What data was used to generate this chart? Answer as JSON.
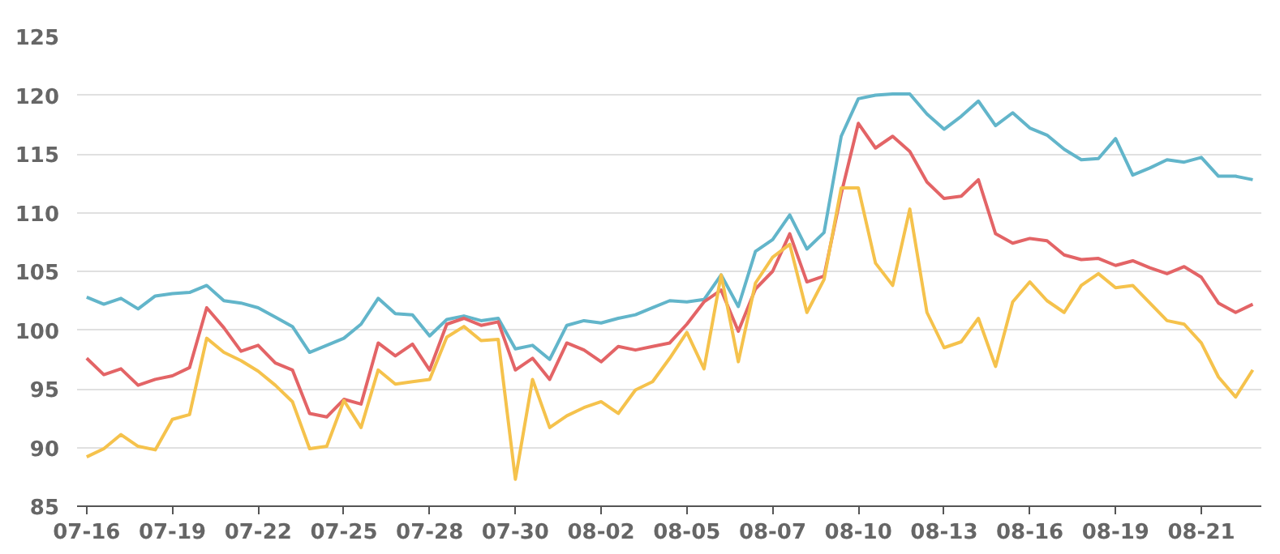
{
  "chart_data": {
    "type": "line",
    "ylim": [
      85,
      125
    ],
    "categories": [
      "07-16",
      null,
      null,
      null,
      null,
      "07-19",
      null,
      null,
      null,
      null,
      "07-22",
      null,
      null,
      null,
      null,
      "07-25",
      null,
      null,
      null,
      null,
      "07-28",
      null,
      null,
      null,
      null,
      "07-30",
      null,
      null,
      null,
      null,
      "08-02",
      null,
      null,
      null,
      null,
      "08-05",
      null,
      null,
      null,
      null,
      "08-07",
      null,
      null,
      null,
      null,
      "08-10",
      null,
      null,
      null,
      null,
      "08-13",
      null,
      null,
      null,
      null,
      "08-16",
      null,
      null,
      null,
      null,
      "08-19",
      null,
      null,
      null,
      null,
      "08-21",
      null,
      null,
      null
    ],
    "yticks": [
      85,
      90,
      95,
      100,
      105,
      110,
      115,
      120,
      125
    ],
    "grid": "y",
    "marker": "none",
    "line_style": "solid",
    "series": [
      {
        "color": "#62b5ca",
        "values": [
          102.8,
          102.2,
          102.7,
          101.8,
          102.9,
          103.1,
          103.2,
          103.8,
          102.5,
          102.3,
          101.9,
          101.1,
          100.3,
          98.1,
          98.7,
          99.3,
          100.5,
          102.7,
          101.4,
          101.3,
          99.5,
          100.9,
          101.2,
          100.8,
          101,
          98.4,
          98.7,
          97.5,
          100.4,
          100.8,
          100.6,
          101,
          101.3,
          101.9,
          102.5,
          102.4,
          102.6,
          104.7,
          102,
          106.7,
          107.7,
          109.8,
          106.9,
          108.3,
          116.5,
          119.7,
          120,
          120.1,
          120.1,
          118.4,
          117.1,
          118.2,
          119.5,
          117.4,
          118.5,
          117.2,
          116.6,
          115.4,
          114.5,
          114.6,
          116.3,
          113.2,
          113.8,
          114.5,
          114.3,
          114.7,
          113.1,
          113.1,
          112.8
        ]
      },
      {
        "color": "#e36466",
        "values": [
          97.6,
          96.2,
          96.7,
          95.3,
          95.8,
          96.1,
          96.8,
          101.9,
          100.2,
          98.2,
          98.7,
          97.2,
          96.6,
          92.9,
          92.6,
          94.1,
          93.7,
          98.9,
          97.8,
          98.8,
          96.6,
          100.5,
          101,
          100.4,
          100.7,
          96.6,
          97.6,
          95.8,
          98.9,
          98.3,
          97.3,
          98.6,
          98.3,
          98.6,
          98.9,
          100.5,
          102.4,
          103.4,
          99.9,
          103.5,
          105,
          108.2,
          104.1,
          104.6,
          111.6,
          117.6,
          115.5,
          116.5,
          115.2,
          112.6,
          111.2,
          111.4,
          112.8,
          108.2,
          107.4,
          107.8,
          107.6,
          106.4,
          106,
          106.1,
          105.5,
          105.9,
          105.3,
          104.8,
          105.4,
          104.5,
          102.3,
          101.5,
          102.2
        ]
      },
      {
        "color": "#f5c24c",
        "values": [
          89.2,
          89.9,
          91.1,
          90.1,
          89.8,
          92.4,
          92.8,
          99.3,
          98.1,
          97.4,
          96.5,
          95.3,
          93.9,
          89.9,
          90.1,
          94,
          91.7,
          96.6,
          95.4,
          95.6,
          95.8,
          99.4,
          100.3,
          99.1,
          99.2,
          87.3,
          95.8,
          91.7,
          92.7,
          93.4,
          93.9,
          92.9,
          94.9,
          95.6,
          97.6,
          99.8,
          96.7,
          104.7,
          97.3,
          104,
          106.2,
          107.3,
          101.5,
          104.3,
          112.1,
          112.1,
          105.7,
          103.8,
          110.3,
          101.5,
          98.5,
          99,
          101,
          96.9,
          102.4,
          104.1,
          102.5,
          101.5,
          103.8,
          104.8,
          103.6,
          103.8,
          102.3,
          100.8,
          100.5,
          98.9,
          96,
          94.3,
          96.6
        ]
      }
    ]
  }
}
